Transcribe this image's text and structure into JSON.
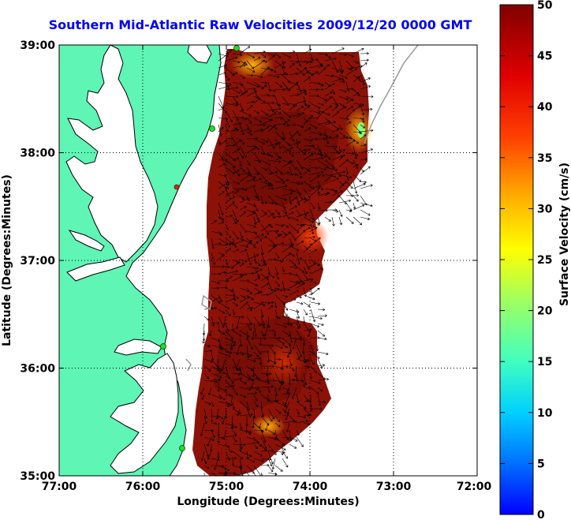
{
  "title": "Southern Mid-Atlantic Raw Velocities 2009/12/20 0000 GMT",
  "xlabel": "Longitude (Degrees:Minutes)",
  "ylabel": "Latitude (Degrees:Minutes)",
  "colorbar_label": "Surface Velocity (cm/s)",
  "x_ticks": [
    "77:00",
    "76:00",
    "75:00",
    "74:00",
    "73:00",
    "72:00"
  ],
  "y_ticks": [
    "39:00",
    "38:00",
    "37:00",
    "36:00",
    "35:00"
  ],
  "colorbar_ticks": [
    "50",
    "45",
    "40",
    "35",
    "30",
    "25",
    "20",
    "15",
    "10",
    "5",
    "0"
  ],
  "colors": {
    "land": "#5ef5b5",
    "title": "#0000ff",
    "velocity_field": "#8c1208",
    "station": "#22dd22"
  },
  "map": {
    "lon_range": [
      -77,
      -72
    ],
    "lat_range": [
      35,
      39
    ],
    "colorbar_range": [
      0,
      50
    ]
  }
}
